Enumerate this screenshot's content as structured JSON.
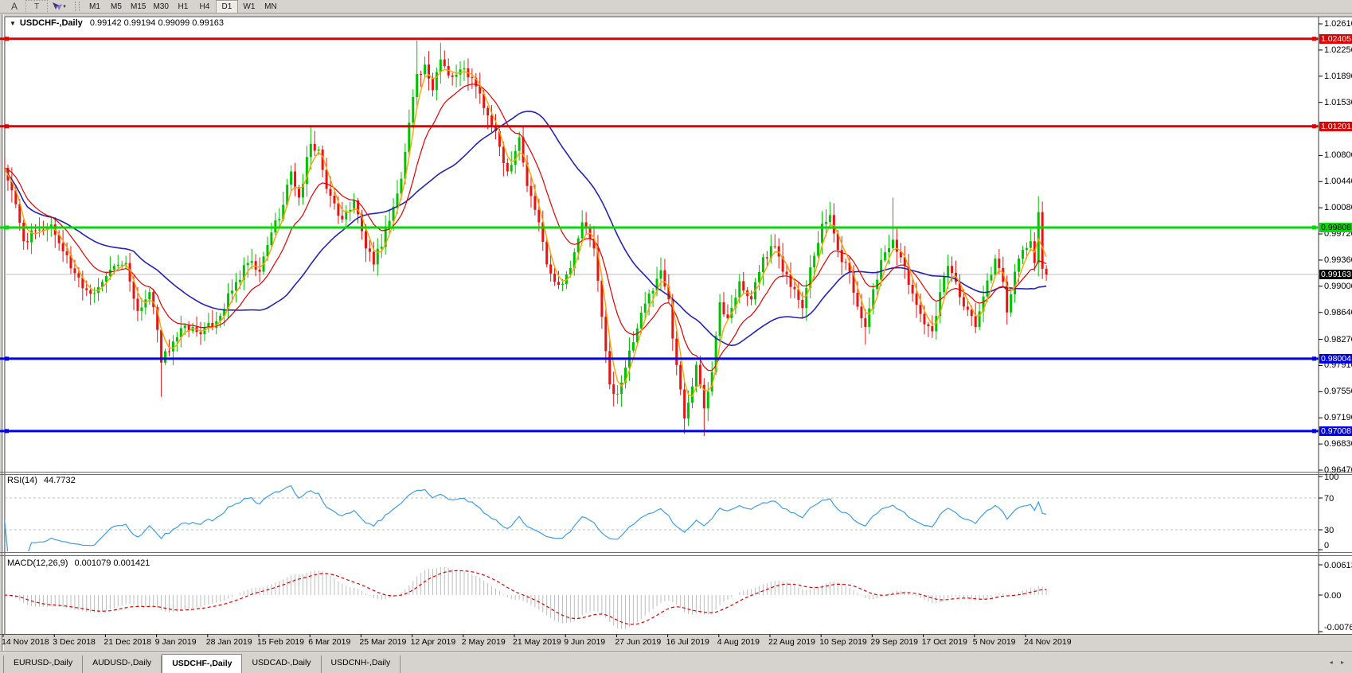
{
  "toolbar": {
    "char_buttons": [
      "A",
      "T"
    ],
    "arrow_tool_caret": "▾",
    "timeframes": [
      "M1",
      "M5",
      "M15",
      "M30",
      "H1",
      "H4",
      "D1",
      "W1",
      "MN"
    ],
    "active_timeframe": "D1"
  },
  "chart": {
    "dropdown_glyph": "▼",
    "symbol_period": "USDCHF-,Daily",
    "ohlc": "0.99142 0.99194 0.99099 0.99163"
  },
  "price_axis": {
    "tick_labels": [
      "1.02610",
      "1.02250",
      "1.01890",
      "1.01530",
      "1.00800",
      "1.00440",
      "1.00080",
      "0.99720",
      "0.99360",
      "0.99000",
      "0.98640",
      "0.98270",
      "0.97910",
      "0.97550",
      "0.97190",
      "0.96830",
      "0.96470"
    ],
    "badges": [
      {
        "value": "1.02405",
        "price": 1.02405,
        "bg": "#e00000",
        "fg": "#ffffff"
      },
      {
        "value": "1.01201",
        "price": 1.01201,
        "bg": "#e00000",
        "fg": "#ffffff"
      },
      {
        "value": "0.99808",
        "price": 0.99808,
        "bg": "#00dd00",
        "fg": "#000000"
      },
      {
        "value": "0.99163",
        "price": 0.99163,
        "bg": "#000000",
        "fg": "#ffffff"
      },
      {
        "value": "0.98004",
        "price": 0.98004,
        "bg": "#0000e8",
        "fg": "#ffffff"
      },
      {
        "value": "0.97008",
        "price": 0.97008,
        "bg": "#0000e8",
        "fg": "#ffffff"
      }
    ]
  },
  "hlines": [
    {
      "price": 1.02405,
      "color": "#e00000",
      "width": 3
    },
    {
      "price": 1.01201,
      "color": "#e00000",
      "width": 3
    },
    {
      "price": 0.99808,
      "color": "#00dd00",
      "width": 3
    },
    {
      "price": 0.98004,
      "color": "#0000e8",
      "width": 3
    },
    {
      "price": 0.97008,
      "color": "#0000e8",
      "width": 3
    }
  ],
  "current_price": {
    "value": 0.99163,
    "line_color": "#bcbcbc"
  },
  "date_axis": {
    "labels": [
      "14 Nov 2018",
      "3 Dec 2018",
      "21 Dec 2018",
      "9 Jan 2019",
      "28 Jan 2019",
      "15 Feb 2019",
      "6 Mar 2019",
      "25 Mar 2019",
      "12 Apr 2019",
      "2 May 2019",
      "21 May 2019",
      "9 Jun 2019",
      "27 Jun 2019",
      "16 Jul 2019",
      "4 Aug 2019",
      "22 Aug 2019",
      "10 Sep 2019",
      "29 Sep 2019",
      "17 Oct 2019",
      "5 Nov 2019",
      "24 Nov 2019"
    ]
  },
  "rsi_panel": {
    "label": "RSI(14)",
    "value": "44.7732",
    "axis_labels": [
      "100",
      "70",
      "30",
      "0"
    ],
    "axis_values": [
      100,
      70,
      30,
      0
    ],
    "dashed_levels": [
      70,
      30
    ],
    "line_color": "#3e9ee8"
  },
  "macd_panel": {
    "label": "MACD(12,26,9)",
    "values": "0.001079 0.001421",
    "axis_labels": [
      "0.00613",
      "0.00",
      "-0.00761"
    ],
    "axis_values": [
      0.00613,
      0,
      -0.00761
    ],
    "histogram_color": "#bdbdbd",
    "signal_color": "#e00000"
  },
  "tabs": {
    "items": [
      {
        "label": "EURUSD-,Daily",
        "active": false
      },
      {
        "label": "AUDUSD-,Daily",
        "active": false
      },
      {
        "label": "USDCHF-,Daily",
        "active": true
      },
      {
        "label": "USDCAD-,Daily",
        "active": false
      },
      {
        "label": "USDCNH-,Daily",
        "active": false
      }
    ],
    "nav_arrows": "◂ ▸"
  },
  "chart_data": {
    "type": "candlestick",
    "symbol": "USDCHF",
    "timeframe": "Daily",
    "bars": 266,
    "ticks_every_bars": 13,
    "y_axis_range": [
      0.9647,
      1.02697
    ],
    "bull_color": "#00c300",
    "bear_color": "#e81414",
    "close_anchors": [
      [
        0,
        1.0063
      ],
      [
        2,
        1.0032
      ],
      [
        5,
        0.9962
      ],
      [
        9,
        0.9978
      ],
      [
        12,
        0.9985
      ],
      [
        15,
        0.9948
      ],
      [
        18,
        0.9918
      ],
      [
        22,
        0.989
      ],
      [
        25,
        0.9906
      ],
      [
        28,
        0.9928
      ],
      [
        31,
        0.9932
      ],
      [
        34,
        0.9866
      ],
      [
        37,
        0.9892
      ],
      [
        39,
        0.984
      ],
      [
        40,
        0.9795
      ],
      [
        43,
        0.9824
      ],
      [
        46,
        0.9846
      ],
      [
        50,
        0.9834
      ],
      [
        54,
        0.9852
      ],
      [
        58,
        0.9894
      ],
      [
        62,
        0.9932
      ],
      [
        65,
        0.992
      ],
      [
        68,
        0.9974
      ],
      [
        71,
        1.0012
      ],
      [
        73,
        1.0058
      ],
      [
        75,
        1.0022
      ],
      [
        78,
        1.0096
      ],
      [
        80,
        1.0088
      ],
      [
        82,
        1.0034
      ],
      [
        86,
        0.9992
      ],
      [
        89,
        1.0018
      ],
      [
        92,
        0.9952
      ],
      [
        94,
        0.993
      ],
      [
        98,
        0.999
      ],
      [
        101,
        1.0048
      ],
      [
        103,
        1.0125
      ],
      [
        105,
        1.0192
      ],
      [
        107,
        1.0205
      ],
      [
        109,
        1.017
      ],
      [
        111,
        1.0212
      ],
      [
        114,
        1.0188
      ],
      [
        117,
        1.02
      ],
      [
        120,
        1.0175
      ],
      [
        123,
        1.0135
      ],
      [
        126,
        1.0092
      ],
      [
        128,
        1.0058
      ],
      [
        131,
        1.0105
      ],
      [
        133,
        1.0038
      ],
      [
        136,
        0.9988
      ],
      [
        138,
        0.993
      ],
      [
        141,
        0.9902
      ],
      [
        144,
        0.9925
      ],
      [
        147,
        0.9988
      ],
      [
        150,
        0.9952
      ],
      [
        152,
        0.9858
      ],
      [
        154,
        0.9765
      ],
      [
        156,
        0.9752
      ],
      [
        158,
        0.9788
      ],
      [
        161,
        0.9842
      ],
      [
        164,
        0.989
      ],
      [
        167,
        0.9922
      ],
      [
        169,
        0.9882
      ],
      [
        170,
        0.9828
      ],
      [
        172,
        0.9758
      ],
      [
        173,
        0.9718
      ],
      [
        175,
        0.9762
      ],
      [
        176,
        0.9792
      ],
      [
        178,
        0.9732
      ],
      [
        180,
        0.9782
      ],
      [
        182,
        0.9878
      ],
      [
        184,
        0.9856
      ],
      [
        187,
        0.9907
      ],
      [
        190,
        0.9882
      ],
      [
        193,
        0.994
      ],
      [
        196,
        0.9955
      ],
      [
        198,
        0.992
      ],
      [
        201,
        0.9896
      ],
      [
        203,
        0.987
      ],
      [
        205,
        0.9926
      ],
      [
        208,
        0.9986
      ],
      [
        210,
        0.9998
      ],
      [
        212,
        0.995
      ],
      [
        215,
        0.992
      ],
      [
        217,
        0.9872
      ],
      [
        219,
        0.9844
      ],
      [
        221,
        0.9896
      ],
      [
        223,
        0.9936
      ],
      [
        226,
        0.9964
      ],
      [
        228,
        0.994
      ],
      [
        230,
        0.9902
      ],
      [
        233,
        0.9862
      ],
      [
        236,
        0.9838
      ],
      [
        238,
        0.9892
      ],
      [
        240,
        0.9928
      ],
      [
        242,
        0.9906
      ],
      [
        244,
        0.9872
      ],
      [
        247,
        0.9844
      ],
      [
        249,
        0.9886
      ],
      [
        252,
        0.9938
      ],
      [
        254,
        0.9906
      ],
      [
        255,
        0.9864
      ],
      [
        257,
        0.992
      ],
      [
        259,
        0.995
      ],
      [
        261,
        0.9962
      ],
      [
        262,
        0.9932
      ],
      [
        263,
        1.0002
      ],
      [
        264,
        0.9924
      ],
      [
        265,
        0.9916
      ]
    ],
    "wick_highs": {
      "0": 1.0082,
      "78": 1.012,
      "105": 1.0238,
      "111": 1.0235,
      "210": 1.0016,
      "226": 1.0022,
      "263": 1.0024
    },
    "wick_lows": {
      "34": 0.9852,
      "40": 0.9748,
      "156": 0.9738,
      "173": 0.9697,
      "178": 0.9694,
      "219": 0.982,
      "264": 0.991
    },
    "overlays": [
      {
        "name": "ma-fast",
        "type": "lwma",
        "period": 5,
        "color": "#ffa200"
      },
      {
        "name": "ma-mid",
        "type": "ema",
        "period": 13,
        "color": "#e00000"
      },
      {
        "name": "ma-slow",
        "type": "sma",
        "period": 34,
        "color": "#2424b4"
      }
    ],
    "indicators": [
      {
        "name": "RSI",
        "period": 14,
        "current": 44.7732
      },
      {
        "name": "MACD",
        "fast": 12,
        "slow": 26,
        "signal": 9,
        "current": [
          0.001079,
          0.001421
        ]
      }
    ]
  }
}
